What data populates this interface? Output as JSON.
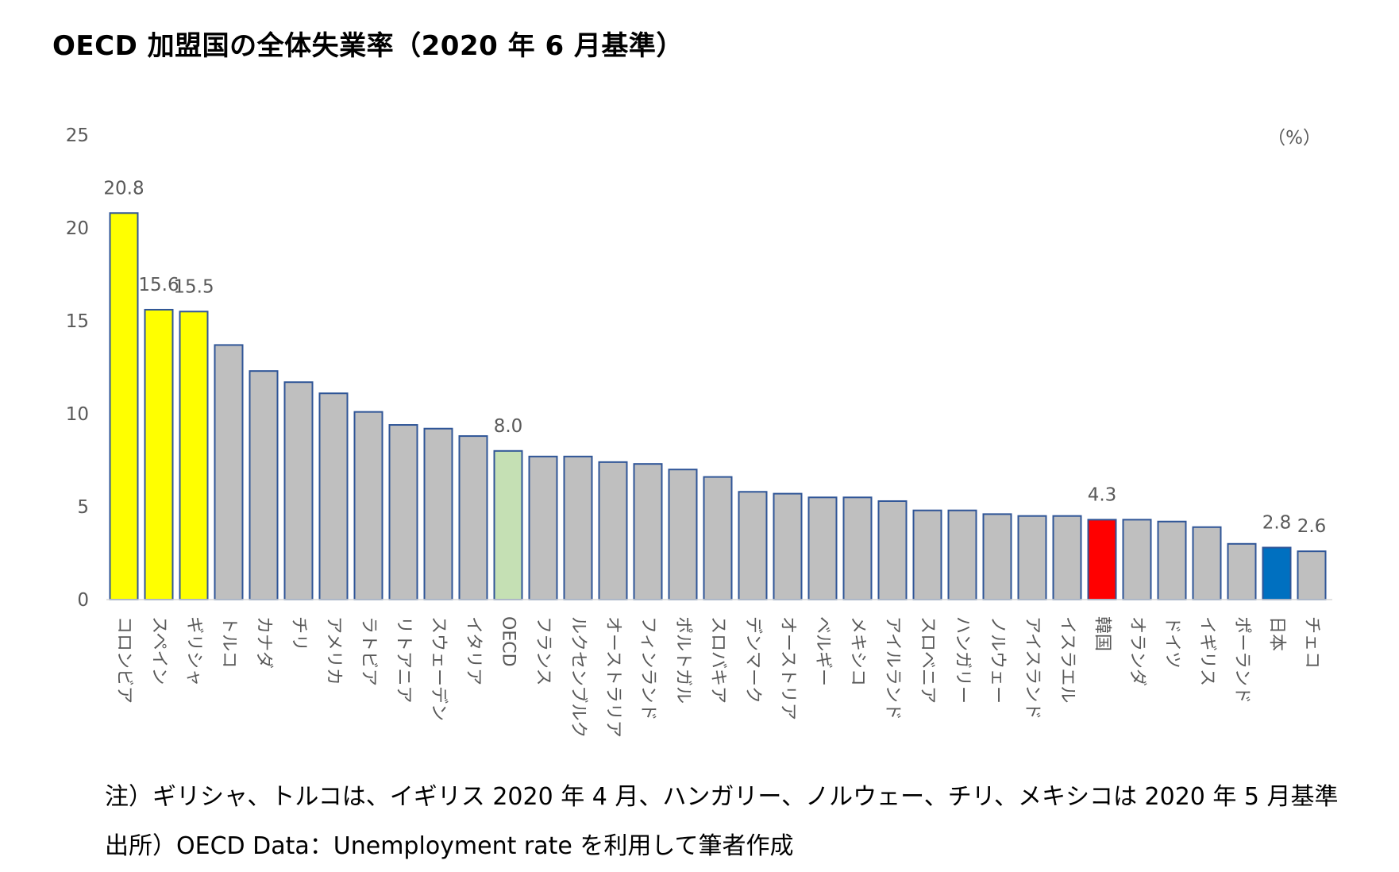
{
  "title": "OECD 加盟国の全体失業率（2020 年 6 月基準）",
  "unit_label": "（%）",
  "notes": {
    "note1": "注）ギリシャ、トルコは、イギリス 2020 年 4 月、ハンガリー、ノルウェー、チリ、メキシコは 2020 年 5 月基準",
    "note2": "出所）OECD Data：Unemployment rate を利用して筆者作成"
  },
  "colors": {
    "default_bar": "#bfbfbf",
    "highlight_top3": "#ffff00",
    "oecd_average": "#c5e0b4",
    "korea": "#ff0000",
    "japan": "#0070c0",
    "bar_outline": "#2f5597",
    "axis_text": "#595959"
  },
  "chart_data": {
    "type": "bar",
    "ylim": [
      0,
      25
    ],
    "yticks": [
      0,
      5,
      10,
      15,
      20,
      25
    ],
    "grid": false,
    "categories": [
      "コロンビア",
      "スペイン",
      "ギリシャ",
      "トルコ",
      "カナダ",
      "チリ",
      "アメリカ",
      "ラトビア",
      "リトアニア",
      "スウェーデン",
      "イタリア",
      "OECD",
      "フランス",
      "ルクセンブルク",
      "オーストラリア",
      "フィンランド",
      "ポルトガル",
      "スロバキア",
      "デンマーク",
      "オーストリア",
      "ベルギー",
      "メキシコ",
      "アイルランド",
      "スロベニア",
      "ハンガリー",
      "ノルウェー",
      "アイスランド",
      "イスラエル",
      "韓国",
      "オランダ",
      "ドイツ",
      "イギリス",
      "ポーランド",
      "日本",
      "チェコ"
    ],
    "values": [
      20.8,
      15.6,
      15.5,
      13.7,
      12.3,
      11.7,
      11.1,
      10.1,
      9.4,
      9.2,
      8.8,
      8.0,
      7.7,
      7.7,
      7.4,
      7.3,
      7.0,
      6.6,
      5.8,
      5.7,
      5.5,
      5.5,
      5.3,
      4.8,
      4.8,
      4.6,
      4.5,
      4.5,
      4.3,
      4.3,
      4.2,
      3.9,
      3.0,
      2.8,
      2.6
    ],
    "bar_colors": [
      "highlight_top3",
      "highlight_top3",
      "highlight_top3",
      "default_bar",
      "default_bar",
      "default_bar",
      "default_bar",
      "default_bar",
      "default_bar",
      "default_bar",
      "default_bar",
      "oecd_average",
      "default_bar",
      "default_bar",
      "default_bar",
      "default_bar",
      "default_bar",
      "default_bar",
      "default_bar",
      "default_bar",
      "default_bar",
      "default_bar",
      "default_bar",
      "default_bar",
      "default_bar",
      "default_bar",
      "default_bar",
      "default_bar",
      "korea",
      "default_bar",
      "default_bar",
      "default_bar",
      "default_bar",
      "japan",
      "default_bar"
    ],
    "data_labels": [
      {
        "category": "コロンビア",
        "label": "20.8"
      },
      {
        "category": "スペイン",
        "label": "15.6"
      },
      {
        "category": "ギリシャ",
        "label": "15.5"
      },
      {
        "category": "OECD",
        "label": "8.0"
      },
      {
        "category": "韓国",
        "label": "4.3"
      },
      {
        "category": "日本",
        "label": "2.8"
      },
      {
        "category": "チェコ",
        "label": "2.6"
      }
    ]
  }
}
